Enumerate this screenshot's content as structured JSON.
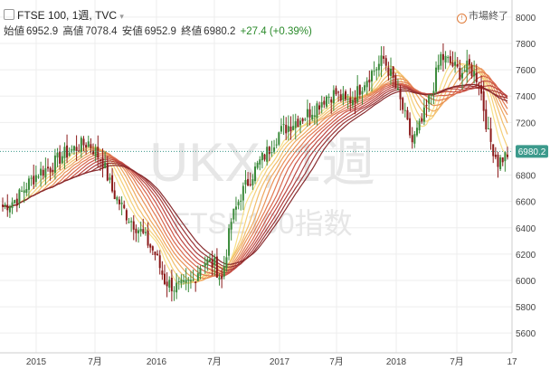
{
  "header": {
    "symbol": "FTSE 100",
    "interval": "1週",
    "source": "TVC",
    "market_status": "市場終了",
    "ohlc": {
      "open_label": "始値",
      "open": "6952.9",
      "high_label": "高値",
      "high": "7078.4",
      "low_label": "安値",
      "low": "6952.9",
      "close_label": "終値",
      "close": "6980.2",
      "change": "+27.4 (+0.39%)"
    }
  },
  "watermark": {
    "line1": "UKX, 1週",
    "line2": "FTSE100指数"
  },
  "last_price_label": "6980.2",
  "colors": {
    "up": "#3a8a3a",
    "down": "#8b1a1a",
    "ribbon": [
      "#f7e08a",
      "#f5cf78",
      "#f2bd6a",
      "#eea75e",
      "#e99056",
      "#e27a52",
      "#d8674d",
      "#cc5648",
      "#bd4842",
      "#ac3d3c",
      "#9a3435",
      "#882c2f"
    ],
    "price_line": "#3c9a8c",
    "grid": "#eeeeee",
    "label_bg": "#3c9a8c"
  },
  "chart_data": {
    "type": "candlestick",
    "x_labels": [
      "2015",
      "7月",
      "2016",
      "7月",
      "2017",
      "7月",
      "2018",
      "7月",
      "17"
    ],
    "y_ticks": [
      5600,
      5800,
      6000,
      6200,
      6400,
      6600,
      6800,
      7000,
      7200,
      7400,
      7600,
      7800,
      8000
    ],
    "y_range": [
      5450,
      8130
    ],
    "last_price": 6980.2,
    "grid": true,
    "series_anchors": [
      [
        0,
        6560
      ],
      [
        6,
        6620
      ],
      [
        10,
        6720
      ],
      [
        15,
        6820
      ],
      [
        20,
        6860
      ],
      [
        25,
        6950
      ],
      [
        30,
        7000
      ],
      [
        36,
        7050
      ],
      [
        42,
        6900
      ],
      [
        46,
        6680
      ],
      [
        52,
        6500
      ],
      [
        58,
        6370
      ],
      [
        64,
        6200
      ],
      [
        68,
        6000
      ],
      [
        72,
        5950
      ],
      [
        76,
        5950
      ],
      [
        80,
        6000
      ],
      [
        84,
        6150
      ],
      [
        89,
        6120
      ],
      [
        92,
        6000
      ],
      [
        96,
        6450
      ],
      [
        100,
        6650
      ],
      [
        104,
        6780
      ],
      [
        108,
        6900
      ],
      [
        112,
        7000
      ],
      [
        116,
        7120
      ],
      [
        122,
        7200
      ],
      [
        127,
        7250
      ],
      [
        132,
        7330
      ],
      [
        136,
        7400
      ],
      [
        140,
        7420
      ],
      [
        144,
        7350
      ],
      [
        148,
        7400
      ],
      [
        152,
        7520
      ],
      [
        156,
        7600
      ],
      [
        160,
        7680
      ],
      [
        164,
        7520
      ],
      [
        168,
        7300
      ],
      [
        172,
        7050
      ],
      [
        176,
        7200
      ],
      [
        180,
        7420
      ],
      [
        184,
        7700
      ],
      [
        188,
        7650
      ],
      [
        192,
        7580
      ],
      [
        196,
        7620
      ],
      [
        200,
        7520
      ],
      [
        204,
        7100
      ],
      [
        208,
        6900
      ],
      [
        212,
        6960
      ]
    ]
  }
}
